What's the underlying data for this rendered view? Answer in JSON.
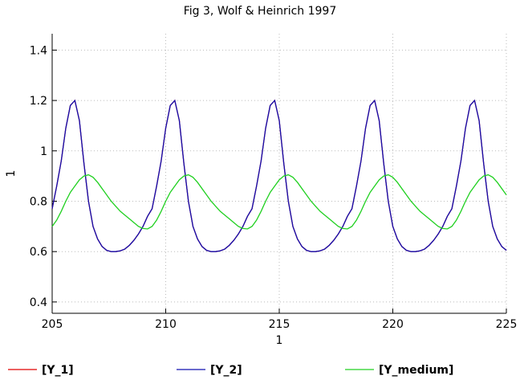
{
  "chart_data": {
    "type": "line",
    "title": "Fig 3, Wolf & Heinrich 1997",
    "xlabel": "1",
    "ylabel": "1",
    "x": [
      205,
      205.2,
      205.4,
      205.6,
      205.8,
      206,
      206.2,
      206.4,
      206.6,
      206.8,
      207,
      207.2,
      207.4,
      207.6,
      207.8,
      208,
      208.2,
      208.4,
      208.6,
      208.8,
      209,
      209.2,
      209.4,
      209.6,
      209.8,
      210,
      210.2,
      210.4,
      210.6,
      210.8,
      211,
      211.2,
      211.4,
      211.6,
      211.8,
      212,
      212.2,
      212.4,
      212.6,
      212.8,
      213,
      213.2,
      213.4,
      213.6,
      213.8,
      214,
      214.2,
      214.4,
      214.6,
      214.8,
      215,
      215.2,
      215.4,
      215.6,
      215.8,
      216,
      216.2,
      216.4,
      216.6,
      216.8,
      217,
      217.2,
      217.4,
      217.6,
      217.8,
      218,
      218.2,
      218.4,
      218.6,
      218.8,
      219,
      219.2,
      219.4,
      219.6,
      219.8,
      220,
      220.2,
      220.4,
      220.6,
      220.8,
      221,
      221.2,
      221.4,
      221.6,
      221.8,
      222,
      222.2,
      222.4,
      222.6,
      222.8,
      223,
      223.2,
      223.4,
      223.6,
      223.8,
      224,
      224.2,
      224.4,
      224.6,
      224.8,
      225
    ],
    "series": [
      {
        "name": "[Y_1]",
        "color": "#e00000",
        "values": [
          0.77,
          0.86,
          0.96,
          1.09,
          1.18,
          1.2,
          1.12,
          0.95,
          0.8,
          0.7,
          0.65,
          0.62,
          0.605,
          0.6,
          0.6,
          0.603,
          0.61,
          0.625,
          0.645,
          0.67,
          0.7,
          0.74,
          0.77,
          0.86,
          0.96,
          1.09,
          1.18,
          1.2,
          1.12,
          0.95,
          0.8,
          0.7,
          0.65,
          0.62,
          0.605,
          0.6,
          0.6,
          0.603,
          0.61,
          0.625,
          0.645,
          0.67,
          0.7,
          0.74,
          0.77,
          0.86,
          0.96,
          1.09,
          1.18,
          1.2,
          1.12,
          0.95,
          0.8,
          0.7,
          0.65,
          0.62,
          0.605,
          0.6,
          0.6,
          0.603,
          0.61,
          0.625,
          0.645,
          0.67,
          0.7,
          0.74,
          0.77,
          0.86,
          0.96,
          1.09,
          1.18,
          1.2,
          1.12,
          0.95,
          0.8,
          0.7,
          0.65,
          0.62,
          0.605,
          0.6,
          0.6,
          0.603,
          0.61,
          0.625,
          0.645,
          0.67,
          0.7,
          0.74,
          0.77,
          0.86,
          0.96,
          1.09,
          1.18,
          1.2,
          1.12,
          0.95,
          0.8,
          0.7,
          0.65,
          0.62,
          0.605
        ]
      },
      {
        "name": "[Y_2]",
        "color": "#1010b0",
        "values": [
          0.77,
          0.86,
          0.96,
          1.09,
          1.18,
          1.2,
          1.12,
          0.95,
          0.8,
          0.7,
          0.65,
          0.62,
          0.605,
          0.6,
          0.6,
          0.603,
          0.61,
          0.625,
          0.645,
          0.67,
          0.7,
          0.74,
          0.77,
          0.86,
          0.96,
          1.09,
          1.18,
          1.2,
          1.12,
          0.95,
          0.8,
          0.7,
          0.65,
          0.62,
          0.605,
          0.6,
          0.6,
          0.603,
          0.61,
          0.625,
          0.645,
          0.67,
          0.7,
          0.74,
          0.77,
          0.86,
          0.96,
          1.09,
          1.18,
          1.2,
          1.12,
          0.95,
          0.8,
          0.7,
          0.65,
          0.62,
          0.605,
          0.6,
          0.6,
          0.603,
          0.61,
          0.625,
          0.645,
          0.67,
          0.7,
          0.74,
          0.77,
          0.86,
          0.96,
          1.09,
          1.18,
          1.2,
          1.12,
          0.95,
          0.8,
          0.7,
          0.65,
          0.62,
          0.605,
          0.6,
          0.6,
          0.603,
          0.61,
          0.625,
          0.645,
          0.67,
          0.7,
          0.74,
          0.77,
          0.86,
          0.96,
          1.09,
          1.18,
          1.2,
          1.12,
          0.95,
          0.8,
          0.7,
          0.65,
          0.62,
          0.605
        ]
      },
      {
        "name": "[Y_medium]",
        "color": "#20d020",
        "values": [
          0.7,
          0.725,
          0.76,
          0.8,
          0.835,
          0.86,
          0.885,
          0.9,
          0.905,
          0.895,
          0.875,
          0.85,
          0.825,
          0.8,
          0.78,
          0.76,
          0.745,
          0.73,
          0.715,
          0.7,
          0.692,
          0.69,
          0.7,
          0.725,
          0.76,
          0.8,
          0.835,
          0.86,
          0.885,
          0.9,
          0.905,
          0.895,
          0.875,
          0.85,
          0.825,
          0.8,
          0.78,
          0.76,
          0.745,
          0.73,
          0.715,
          0.7,
          0.692,
          0.69,
          0.7,
          0.725,
          0.76,
          0.8,
          0.835,
          0.86,
          0.885,
          0.9,
          0.905,
          0.895,
          0.875,
          0.85,
          0.825,
          0.8,
          0.78,
          0.76,
          0.745,
          0.73,
          0.715,
          0.7,
          0.692,
          0.69,
          0.7,
          0.725,
          0.76,
          0.8,
          0.835,
          0.86,
          0.885,
          0.9,
          0.905,
          0.895,
          0.875,
          0.85,
          0.825,
          0.8,
          0.78,
          0.76,
          0.745,
          0.73,
          0.715,
          0.7,
          0.692,
          0.69,
          0.7,
          0.725,
          0.76,
          0.8,
          0.835,
          0.86,
          0.885,
          0.9,
          0.905,
          0.895,
          0.875,
          0.85,
          0.825
        ]
      }
    ],
    "xlim": [
      205,
      225
    ],
    "xticks": [
      205,
      210,
      215,
      220,
      225
    ],
    "ylim": [
      0.355,
      1.465
    ],
    "yticks": [
      0.4,
      0.6,
      0.8,
      1,
      1.2,
      1.4
    ],
    "grid": true,
    "legend": "bottom"
  }
}
